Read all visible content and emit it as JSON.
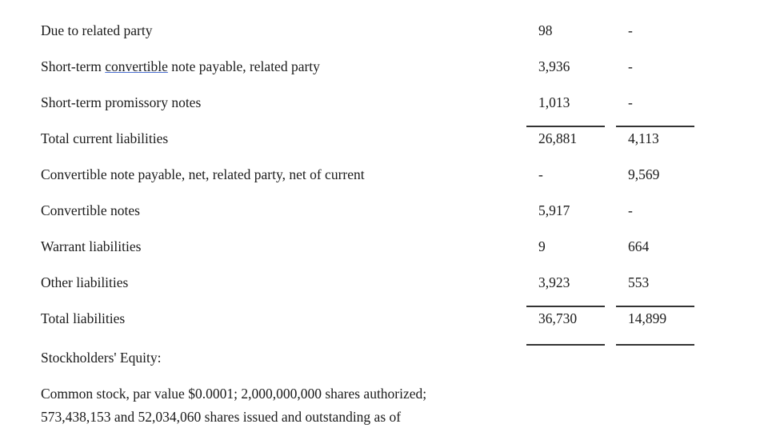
{
  "rows": [
    {
      "label": "Due to related party",
      "c1": "98",
      "c2": "-"
    },
    {
      "label_pre": "Short-term ",
      "label_sp": "convertible",
      "label_post": " note payable, related party",
      "c1": "3,936",
      "c2": "-"
    },
    {
      "label": "Short-term promissory notes",
      "c1": "1,013",
      "c2": "-"
    },
    {
      "label": "Total current liabilities",
      "c1": "26,881",
      "c2": "4,113"
    },
    {
      "label": "Convertible note payable, net, related party, net of current",
      "c1": "-",
      "c2": "9,569"
    },
    {
      "label": "Convertible notes",
      "c1": "5,917",
      "c2": "-"
    },
    {
      "label": "Warrant liabilities",
      "c1": "9",
      "c2": "664"
    },
    {
      "label": "Other liabilities",
      "c1": "3,923",
      "c2": "553"
    },
    {
      "label": "Total liabilities",
      "c1": "36,730",
      "c2": "14,899"
    }
  ],
  "equity_heading": "Stockholders' Equity:",
  "common_stock_line1": "Common stock, par value $0.0001; 2,000,000,000 shares authorized;",
  "common_stock_line2": "573,438,153 and 52,034,060 shares issued and outstanding as of"
}
